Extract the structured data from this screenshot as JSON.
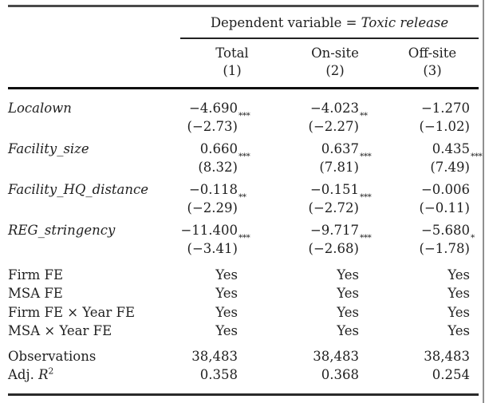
{
  "page": {
    "background": "#ffffff",
    "text_color": "#1f1f1f",
    "rule_color": "#1c1c1c",
    "frame_color": "#8f8f8f"
  },
  "table": {
    "spanner_prefix": "Dependent variable = ",
    "spanner_italic": "Toxic release",
    "columns": [
      {
        "label": "Total",
        "number": "(1)"
      },
      {
        "label": "On-site",
        "number": "(2)"
      },
      {
        "label": "Off-site",
        "number": "(3)"
      }
    ],
    "coef_rows": [
      {
        "label": "Localown",
        "cells": [
          {
            "coef": "−4.690",
            "stars": "***",
            "t": "(−2.73)"
          },
          {
            "coef": "−4.023",
            "stars": "**",
            "t": "(−2.27)"
          },
          {
            "coef": "−1.270",
            "stars": "",
            "t": "(−1.02)"
          }
        ]
      },
      {
        "label": "Facility_size",
        "cells": [
          {
            "coef": "0.660",
            "stars": "***",
            "t": "(8.32)"
          },
          {
            "coef": "0.637",
            "stars": "***",
            "t": "(7.81)"
          },
          {
            "coef": "0.435",
            "stars": "***",
            "t": "(7.49)"
          }
        ]
      },
      {
        "label": "Facility_HQ_distance",
        "cells": [
          {
            "coef": "−0.118",
            "stars": "**",
            "t": "(−2.29)"
          },
          {
            "coef": "−0.151",
            "stars": "***",
            "t": "(−2.72)"
          },
          {
            "coef": "−0.006",
            "stars": "",
            "t": "(−0.11)"
          }
        ]
      },
      {
        "label": "REG_stringency",
        "cells": [
          {
            "coef": "−11.400",
            "stars": "***",
            "t": "(−3.41)"
          },
          {
            "coef": "−9.717",
            "stars": "***",
            "t": "(−2.68)"
          },
          {
            "coef": "−5.680",
            "stars": "*",
            "t": "(−1.78)"
          }
        ]
      }
    ],
    "fe_rows": [
      {
        "label": "Firm FE",
        "values": [
          "Yes",
          "Yes",
          "Yes"
        ]
      },
      {
        "label": "MSA FE",
        "values": [
          "Yes",
          "Yes",
          "Yes"
        ]
      },
      {
        "label": "Firm FE × Year FE",
        "values": [
          "Yes",
          "Yes",
          "Yes"
        ]
      },
      {
        "label": "MSA × Year FE",
        "values": [
          "Yes",
          "Yes",
          "Yes"
        ]
      }
    ],
    "stat_rows": [
      {
        "label_plain": "Observations",
        "values": [
          "38,483",
          "38,483",
          "38,483"
        ]
      },
      {
        "label_parts": [
          {
            "t": "Adj. "
          },
          {
            "t": "R",
            "i": true
          },
          {
            "t": "2",
            "sup": true
          }
        ],
        "values": [
          "0.358",
          "0.368",
          "0.254"
        ]
      }
    ]
  }
}
